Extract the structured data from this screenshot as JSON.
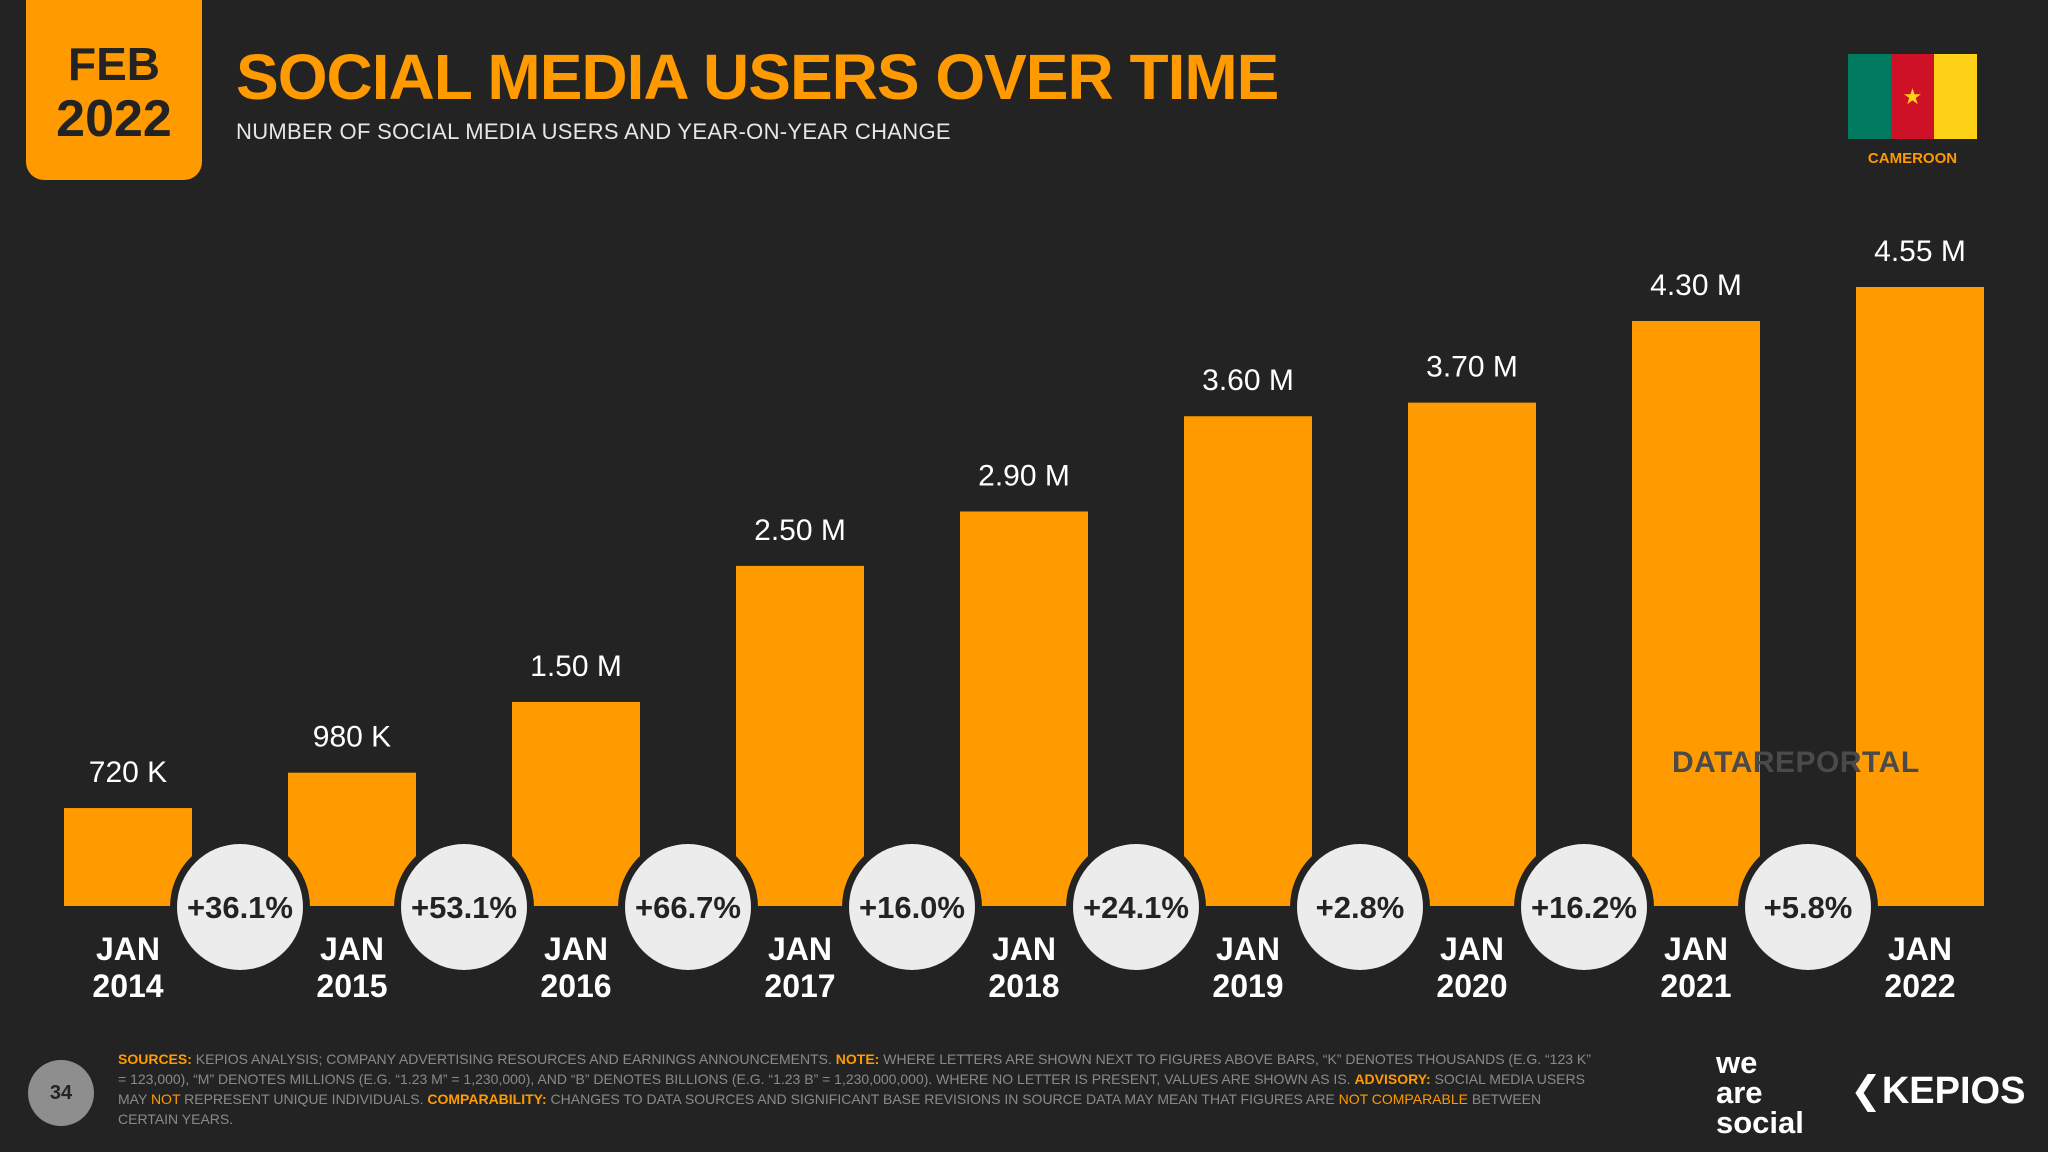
{
  "header": {
    "badge_month": "FEB",
    "badge_year": "2022",
    "title": "SOCIAL MEDIA USERS OVER TIME",
    "subtitle": "NUMBER OF SOCIAL MEDIA USERS AND YEAR-ON-YEAR CHANGE",
    "country": "CAMEROON",
    "flag_star": "★"
  },
  "colors": {
    "accent": "#ff9a00",
    "background": "#232323",
    "bubble": "#ececec"
  },
  "chart_data": {
    "type": "bar",
    "title": "SOCIAL MEDIA USERS OVER TIME",
    "categories": [
      [
        "JAN",
        "2014"
      ],
      [
        "JAN",
        "2015"
      ],
      [
        "JAN",
        "2016"
      ],
      [
        "JAN",
        "2017"
      ],
      [
        "JAN",
        "2018"
      ],
      [
        "JAN",
        "2019"
      ],
      [
        "JAN",
        "2020"
      ],
      [
        "JAN",
        "2021"
      ],
      [
        "JAN",
        "2022"
      ]
    ],
    "values": [
      0.72,
      0.98,
      1.5,
      2.5,
      2.9,
      3.6,
      3.7,
      4.3,
      4.55
    ],
    "value_labels": [
      "720 K",
      "980 K",
      "1.50 M",
      "2.50 M",
      "2.90 M",
      "3.60 M",
      "3.70 M",
      "4.30 M",
      "4.55 M"
    ],
    "yoy_change": [
      "+36.1%",
      "+53.1%",
      "+66.7%",
      "+16.0%",
      "+24.1%",
      "+2.8%",
      "+16.2%",
      "+5.8%"
    ],
    "unit": "millions of users",
    "ylim": [
      0,
      4.55
    ]
  },
  "watermark": "DATAREPORTAL",
  "footer": {
    "sources_label": "SOURCES:",
    "sources_text": " KEPIOS ANALYSIS; COMPANY ADVERTISING RESOURCES AND EARNINGS ANNOUNCEMENTS. ",
    "note_label": "NOTE:",
    "note_text": " WHERE LETTERS ARE SHOWN NEXT TO FIGURES ABOVE BARS, “K” DENOTES THOUSANDS (E.G. “123 K” = 123,000), “M” DENOTES MILLIONS (E.G. “1.23 M” = 1,230,000), AND “B” DENOTES BILLIONS (E.G. “1.23 B” = 1,230,000,000). WHERE NO LETTER IS PRESENT, VALUES ARE SHOWN AS IS. ",
    "advisory_label": "ADVISORY:",
    "advisory_text_1": " SOCIAL MEDIA USERS MAY ",
    "advisory_not": "NOT",
    "advisory_text_2": " REPRESENT UNIQUE INDIVIDUALS. ",
    "comparability_label": "COMPARABILITY:",
    "comparability_text": " CHANGES TO DATA SOURCES AND SIGNIFICANT BASE REVISIONS IN SOURCE DATA MAY MEAN THAT FIGURES ARE ",
    "comparability_not": "NOT COMPARABLE",
    "comparability_end": " BETWEEN CERTAIN YEARS."
  },
  "page_number": "34",
  "brands": {
    "was_line1": "we",
    "was_line2": "are",
    "was_line3": "social",
    "kepios": "KEPIOS"
  }
}
